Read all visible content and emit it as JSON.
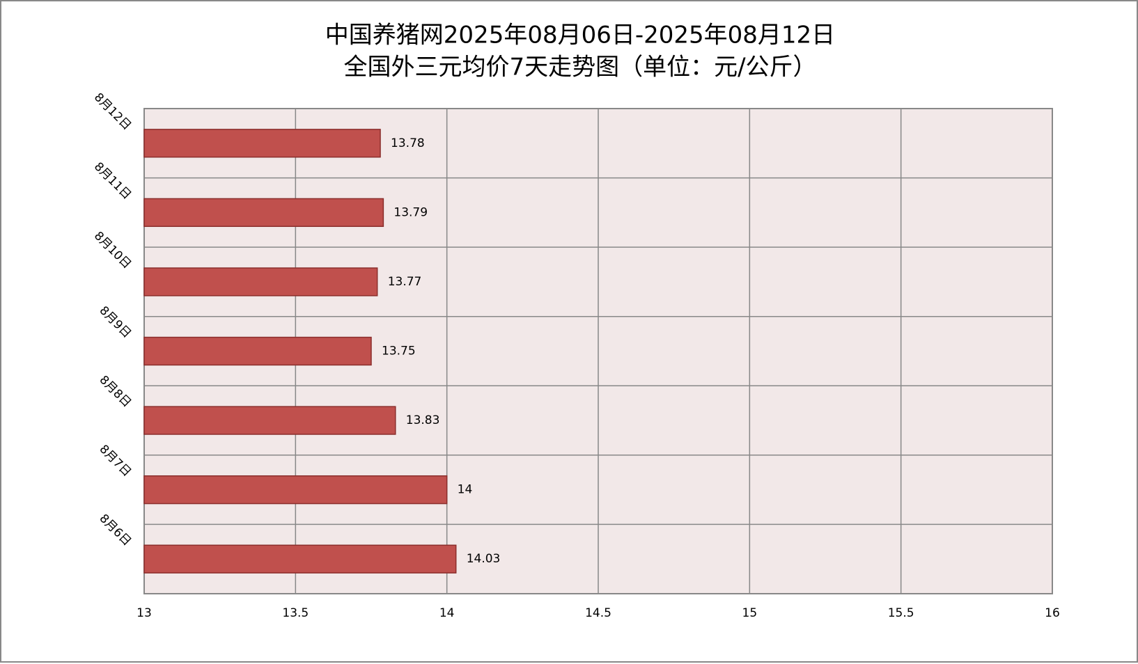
{
  "chart_data": {
    "type": "barh",
    "title": "中国养猪网2025年08月06日-2025年08月12日",
    "subtitle": "全国外三元均价7天走势图（单位：元/公斤）",
    "categories": [
      "8月6日",
      "8月7日",
      "8月8日",
      "8月9日",
      "8月10日",
      "8月11日",
      "8月12日"
    ],
    "values": [
      14.03,
      14,
      13.83,
      13.75,
      13.77,
      13.79,
      13.78
    ],
    "color": "#c0504d",
    "xlim": [
      13,
      16
    ],
    "xticks": [
      13,
      13.5,
      14,
      14.5,
      15,
      15.5,
      16
    ],
    "grid": true
  }
}
